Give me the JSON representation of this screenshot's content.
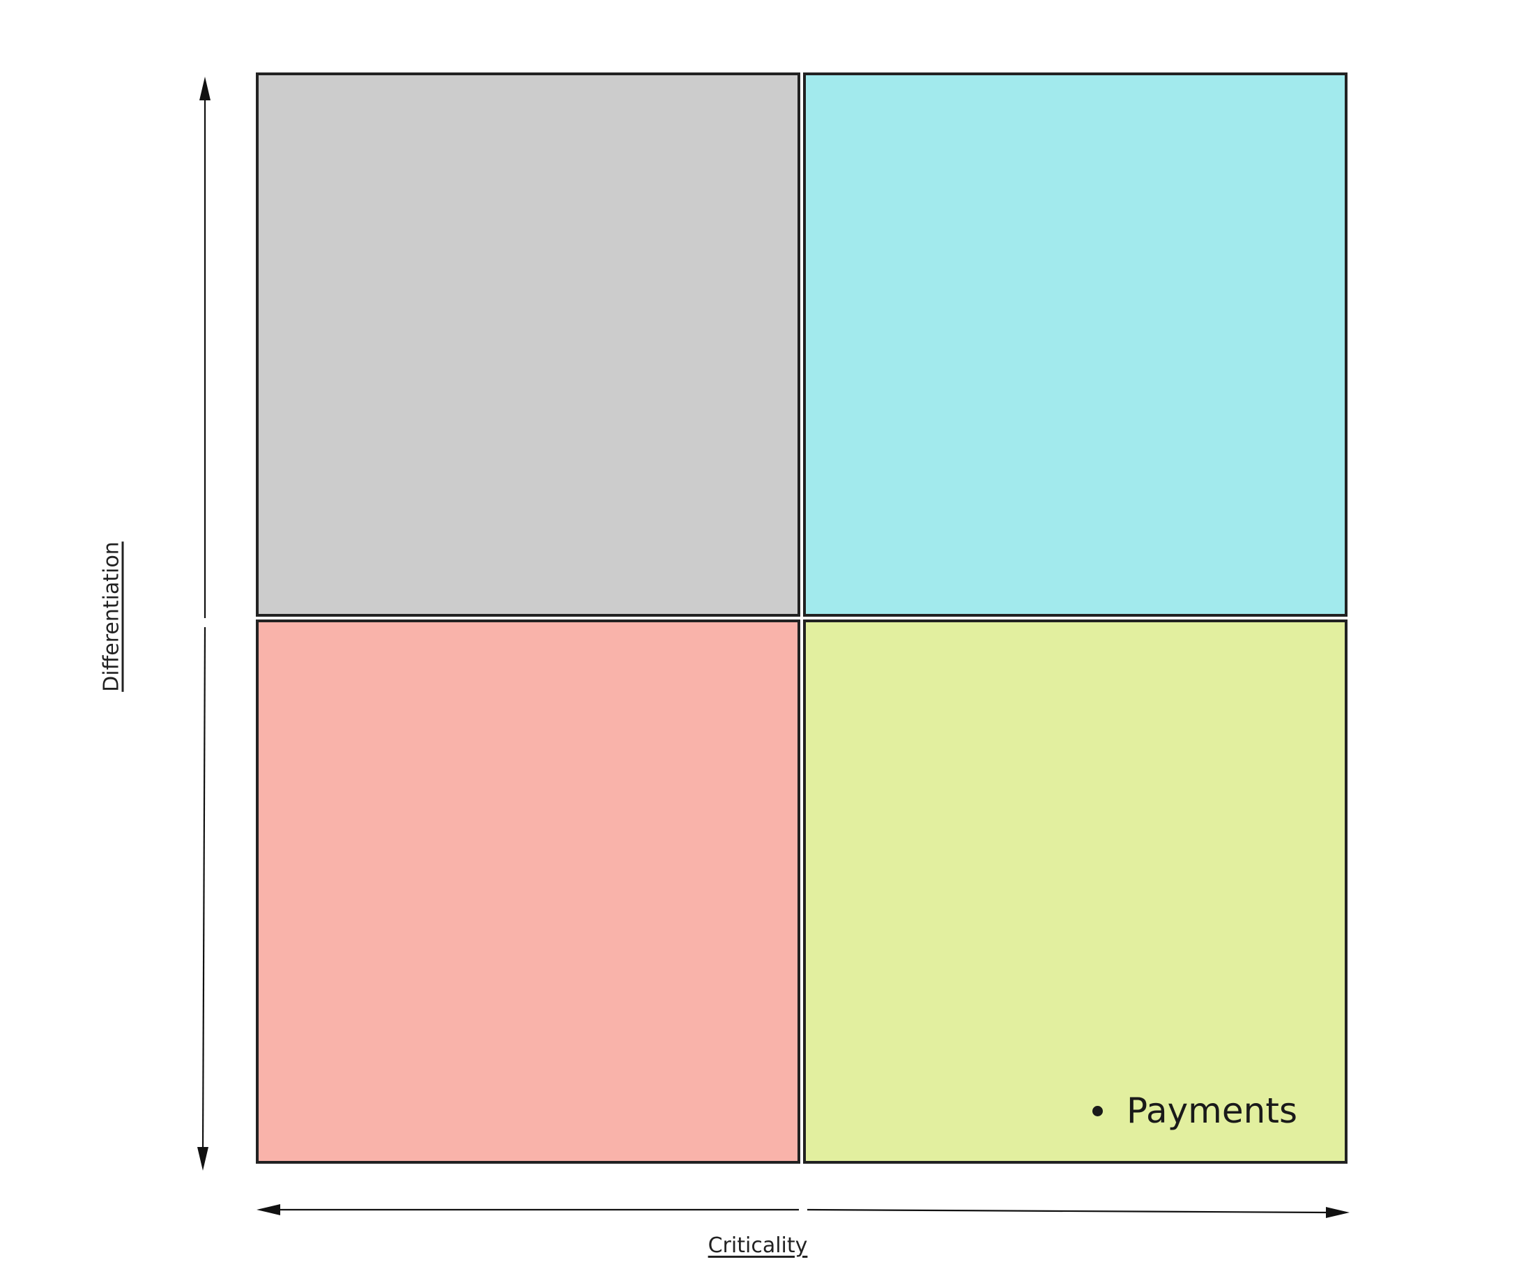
{
  "axes": {
    "x_label": "Criticality",
    "y_label": "Differentiation"
  },
  "quadrants": {
    "top_left": {
      "color": "#cccccc",
      "items": []
    },
    "top_right": {
      "color": "#a2eaed",
      "items": []
    },
    "bottom_left": {
      "color": "#f9b3aa",
      "items": []
    },
    "bottom_right": {
      "color": "#e2ef9f",
      "items": [
        "Payments"
      ]
    }
  }
}
